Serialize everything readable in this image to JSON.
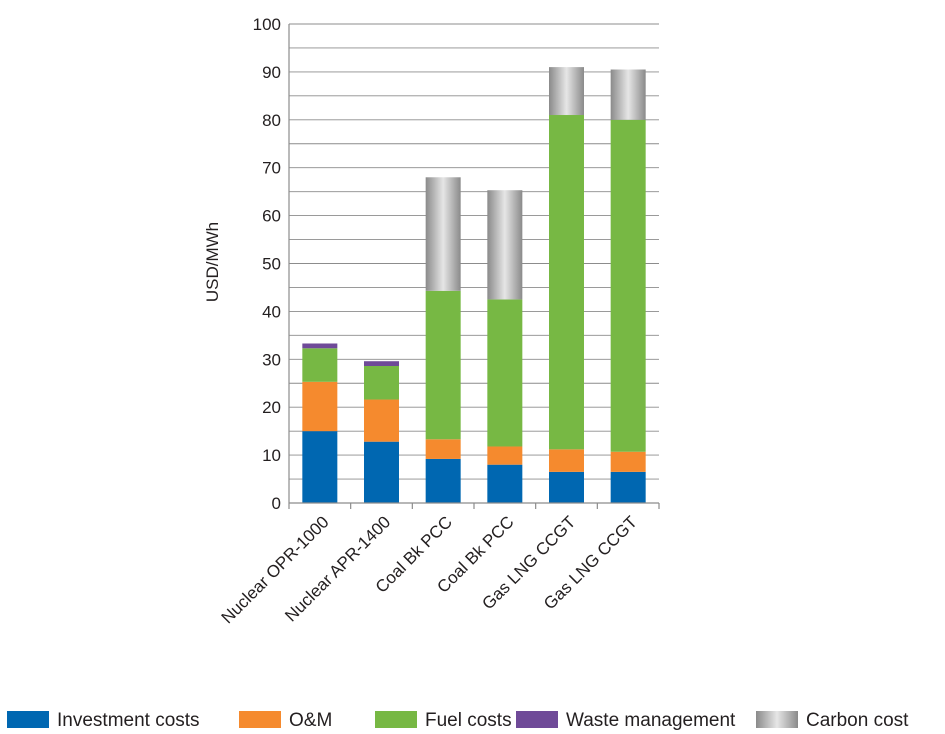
{
  "chart_data": {
    "type": "bar",
    "stacked": true,
    "title": "",
    "xlabel": "",
    "ylabel": "USD/MWh",
    "ylim": [
      0,
      100
    ],
    "yticks": [
      0,
      10,
      20,
      30,
      40,
      50,
      60,
      70,
      80,
      90,
      100
    ],
    "grid": true,
    "legend_position": "bottom",
    "categories": [
      "Nuclear OPR-1000",
      "Nuclear APR-1400",
      "Coal Bk PCC",
      "Coal Bk PCC",
      "Gas LNG CCGT",
      "Gas LNG CCGT"
    ],
    "series": [
      {
        "name": "Investment costs",
        "color": "#0067b1",
        "values": [
          15.0,
          12.8,
          9.2,
          8.0,
          6.5,
          6.5
        ]
      },
      {
        "name": "O&M",
        "color": "#f58a2e",
        "values": [
          10.3,
          8.8,
          4.1,
          3.8,
          4.7,
          4.2
        ]
      },
      {
        "name": "Fuel costs",
        "color": "#77b844",
        "values": [
          7.0,
          7.0,
          31.0,
          30.7,
          69.8,
          69.3
        ]
      },
      {
        "name": "Waste management",
        "color": "#6f4a98",
        "values": [
          1.0,
          1.0,
          0,
          0,
          0,
          0
        ]
      },
      {
        "name": "Carbon cost",
        "color": "#b0b0b0",
        "values": [
          0,
          0,
          23.7,
          22.8,
          10.0,
          10.5
        ]
      }
    ]
  }
}
